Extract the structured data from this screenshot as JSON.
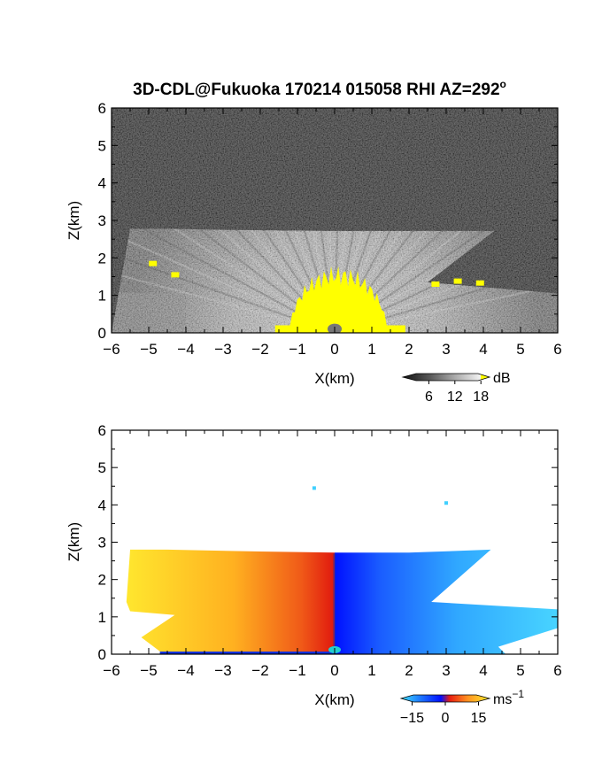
{
  "figure": {
    "title": "3D-CDL@Fukuoka 170214 015058 RHI AZ=292",
    "title_sup": "o"
  },
  "chart_data": [
    {
      "type": "heatmap",
      "quantity": "signal intensity",
      "xlabel": "X(km)",
      "ylabel": "Z(km)",
      "xlim": [
        -6,
        6
      ],
      "ylim": [
        0,
        6
      ],
      "xticks": [
        "-6",
        "-5",
        "-4",
        "-3",
        "-2",
        "-1",
        "0",
        "1",
        "2",
        "3",
        "4",
        "5",
        "6"
      ],
      "yticks": [
        "0",
        "1",
        "2",
        "3",
        "4",
        "5",
        "6"
      ],
      "colorbar": {
        "unit": "dB",
        "ticks": [
          "6",
          "12",
          "18"
        ],
        "tick_values": [
          6,
          12,
          18
        ],
        "range": [
          0,
          20
        ]
      },
      "colors": {
        "background": "#1e1e1e",
        "saturated": "#ffff00",
        "strong": "#f2f2f2"
      },
      "echo_top_km": {
        "x": [
          -6,
          -5.5,
          -4.5,
          -3,
          0,
          2.5,
          4.3
        ],
        "z": [
          0,
          2.78,
          2.78,
          2.75,
          2.72,
          2.72,
          2.72
        ]
      },
      "saturated_region": {
        "x_range": [
          -1.2,
          1.4
        ],
        "z_max": 1.8
      },
      "features": [
        {
          "x": -4.9,
          "z": 1.85,
          "level": "saturated"
        },
        {
          "x": -4.3,
          "z": 1.55,
          "level": "saturated"
        },
        {
          "x": 2.7,
          "z": 1.3,
          "level": "saturated"
        },
        {
          "x": 3.3,
          "z": 1.38,
          "level": "saturated"
        },
        {
          "x": 3.9,
          "z": 1.33,
          "level": "saturated"
        },
        {
          "x": 0,
          "z": 0.08,
          "level": "weak"
        }
      ]
    },
    {
      "type": "heatmap",
      "quantity": "radial velocity",
      "xlabel": "X(km)",
      "ylabel": "Z(km)",
      "xlim": [
        -6,
        6
      ],
      "ylim": [
        0,
        6
      ],
      "xticks": [
        "-6",
        "-5",
        "-4",
        "-3",
        "-2",
        "-1",
        "0",
        "1",
        "2",
        "3",
        "4",
        "5",
        "6"
      ],
      "yticks": [
        "0",
        "1",
        "2",
        "3",
        "4",
        "5",
        "6"
      ],
      "colorbar": {
        "unit": "ms",
        "unit_sup": "−1",
        "ticks": [
          "−15",
          "0",
          "15"
        ],
        "tick_values": [
          -15,
          0,
          15
        ],
        "range": [
          -20,
          20
        ]
      },
      "colors": {
        "negative_near": "#0010ff",
        "negative_far": "#40c8ff",
        "positive_near": "#e81e10",
        "positive_far": "#ffee30"
      },
      "data_top_km": {
        "x": [
          -5.5,
          -4.5,
          -2,
          0,
          2,
          4.2
        ],
        "z": [
          2.8,
          2.8,
          2.75,
          2.72,
          2.72,
          2.8
        ]
      },
      "isolated_points": [
        {
          "x": -0.55,
          "z": 4.45,
          "value": -8
        },
        {
          "x": 3.0,
          "z": 4.05,
          "value": -8
        }
      ]
    }
  ]
}
